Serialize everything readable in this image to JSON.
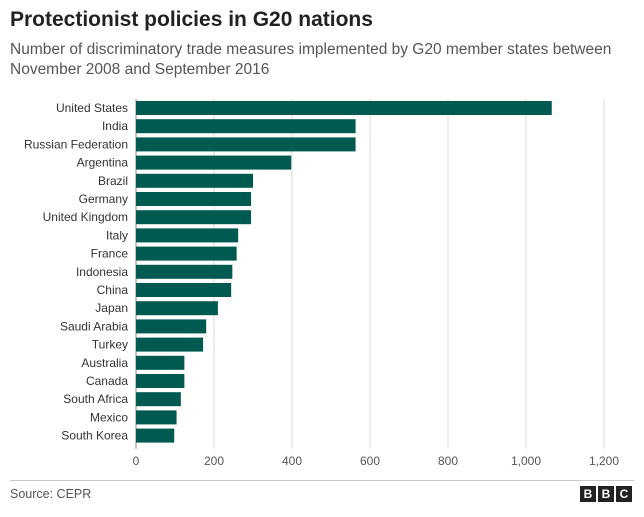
{
  "header": {
    "title": "Protectionist policies in G20 nations",
    "subtitle": "Number of discriminatory trade measures implemented by G20 member states between November 2008 and September 2016"
  },
  "footer": {
    "source": "Source: CEPR",
    "logo_letters": [
      "B",
      "B",
      "C"
    ]
  },
  "colors": {
    "bar": "#005a50",
    "grid": "#d9d9d9",
    "axis": "#888888"
  },
  "chart_data": {
    "type": "bar",
    "orientation": "horizontal",
    "categories": [
      "United States",
      "India",
      "Russian Federation",
      "Argentina",
      "Brazil",
      "Germany",
      "United Kingdom",
      "Italy",
      "France",
      "Indonesia",
      "China",
      "Japan",
      "Saudi Arabia",
      "Turkey",
      "Australia",
      "Canada",
      "South Africa",
      "Mexico",
      "South Korea"
    ],
    "values": [
      1066,
      563,
      563,
      398,
      300,
      295,
      295,
      262,
      258,
      247,
      244,
      210,
      180,
      172,
      124,
      124,
      115,
      104,
      98
    ],
    "xlim": [
      0,
      1200
    ],
    "ticks": [
      0,
      200,
      400,
      600,
      800,
      1000,
      1200
    ],
    "tick_labels": [
      "0",
      "200",
      "400",
      "600",
      "800",
      "1,000",
      "1,200"
    ],
    "grid": true
  }
}
